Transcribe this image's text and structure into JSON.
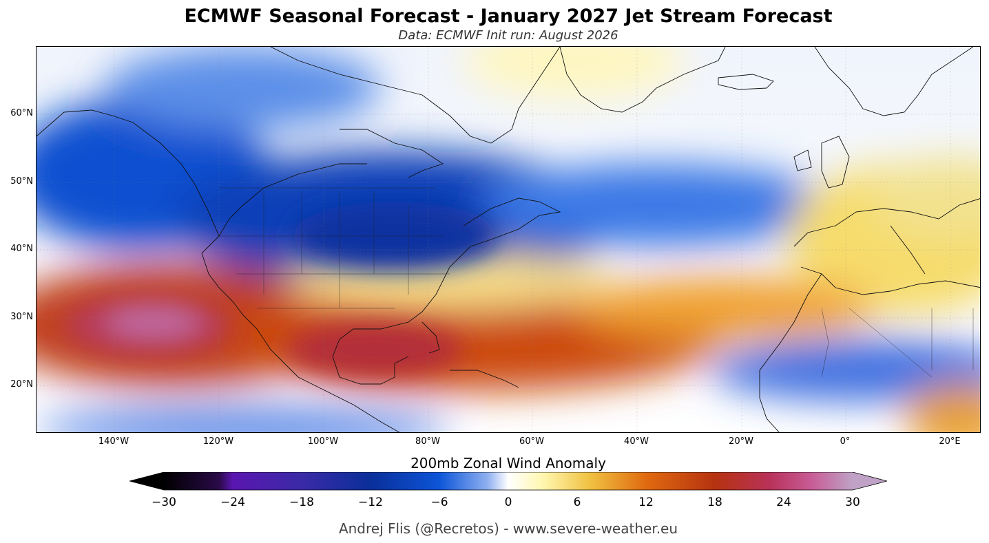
{
  "title": "ECMWF Seasonal Forecast - January 2027 Jet Stream Forecast",
  "subtitle": "Data: ECMWF   Init run: August 2026",
  "map": {
    "projection": "PlateCarree",
    "lon_range": [
      -155,
      26
    ],
    "lat_range": [
      13,
      70
    ],
    "lat_ticks": [
      "60°N",
      "50°N",
      "40°N",
      "30°N",
      "20°N"
    ],
    "lon_ticks": [
      "140°W",
      "120°W",
      "100°W",
      "80°W",
      "60°W",
      "40°W",
      "20°W",
      "0°",
      "20°E"
    ],
    "gridlines": true
  },
  "colorbar": {
    "title": "200mb Zonal Wind Anomaly",
    "labels": [
      "−30",
      "−24",
      "−18",
      "−12",
      "−6",
      "0",
      "6",
      "12",
      "18",
      "24",
      "30"
    ],
    "extend": "both",
    "colors": [
      "#000000",
      "#3a0a68",
      "#5a16b0",
      "#3a2aa6",
      "#0a2f9a",
      "#0d55d8",
      "#5d8ee8",
      "#ffffff",
      "#fff7b0",
      "#f0c040",
      "#e06a10",
      "#b63210",
      "#b8325a",
      "#c85c96",
      "#bfa2c6"
    ]
  },
  "credit": "Andrej Flis (@Recretos) - www.severe-weather.eu"
}
